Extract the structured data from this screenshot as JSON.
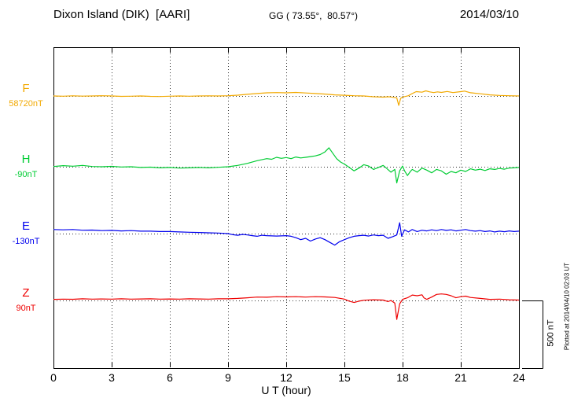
{
  "header": {
    "station": "Dixon Island (DIK)  [AARI]",
    "coords": "GG ( 73.55°,  80.57°)",
    "date": "2014/03/10"
  },
  "annotations": {
    "scale_label": "500 nT",
    "plotted_note": "Plotted at 2014/04/10 02:03 UT"
  },
  "chart_data": {
    "type": "line",
    "title": "Dixon Island (DIK) [AARI] magnetogram 2014/03/10",
    "xlabel": "U T (hour)",
    "x_range": [
      0,
      24
    ],
    "x_ticks": [
      0,
      3,
      6,
      9,
      12,
      15,
      18,
      21,
      24
    ],
    "scale_bar_nT": 500,
    "grid": "dotted vertical lines every 3 h; dotted horizontal baseline per channel",
    "legend_position": "left margin channel labels",
    "series": [
      {
        "name": "F",
        "baseline_label": "58720nT",
        "baseline_value": 58720,
        "units": "nT deviation from baseline",
        "color": "#f2a900",
        "points": [
          [
            0,
            0
          ],
          [
            0.5,
            -2
          ],
          [
            1,
            1
          ],
          [
            1.5,
            -1
          ],
          [
            2,
            0
          ],
          [
            2.5,
            2
          ],
          [
            3,
            0
          ],
          [
            3.5,
            -3
          ],
          [
            4,
            -2
          ],
          [
            4.5,
            0
          ],
          [
            5,
            -3
          ],
          [
            5.5,
            -4
          ],
          [
            6,
            -2
          ],
          [
            6.5,
            0
          ],
          [
            7,
            -2
          ],
          [
            7.5,
            0
          ],
          [
            8,
            1
          ],
          [
            8.5,
            0
          ],
          [
            9,
            2
          ],
          [
            9.5,
            6
          ],
          [
            10,
            12
          ],
          [
            10.5,
            18
          ],
          [
            11,
            23
          ],
          [
            11.5,
            25
          ],
          [
            12,
            23
          ],
          [
            12.5,
            26
          ],
          [
            13,
            22
          ],
          [
            13.5,
            18
          ],
          [
            14,
            14
          ],
          [
            14.5,
            8
          ],
          [
            15,
            5
          ],
          [
            15.5,
            2
          ],
          [
            16,
            0
          ],
          [
            16.5,
            -6
          ],
          [
            17,
            -9
          ],
          [
            17.3,
            -6
          ],
          [
            17.5,
            -10
          ],
          [
            17.7,
            -14
          ],
          [
            17.8,
            -70
          ],
          [
            17.9,
            -18
          ],
          [
            18,
            -8
          ],
          [
            18.3,
            2
          ],
          [
            18.5,
            18
          ],
          [
            18.7,
            32
          ],
          [
            19,
            28
          ],
          [
            19.2,
            38
          ],
          [
            19.4,
            30
          ],
          [
            19.6,
            25
          ],
          [
            19.8,
            30
          ],
          [
            20,
            26
          ],
          [
            20.3,
            33
          ],
          [
            20.6,
            25
          ],
          [
            21,
            32
          ],
          [
            21.2,
            36
          ],
          [
            21.5,
            24
          ],
          [
            22,
            16
          ],
          [
            22.5,
            8
          ],
          [
            23,
            4
          ],
          [
            23.5,
            2
          ],
          [
            24,
            0
          ]
        ]
      },
      {
        "name": "H",
        "baseline_label": "-90nT",
        "baseline_value": -90,
        "units": "nT deviation from baseline",
        "color": "#00cc33",
        "points": [
          [
            0,
            2
          ],
          [
            0.5,
            8
          ],
          [
            1,
            4
          ],
          [
            1.5,
            10
          ],
          [
            2,
            2
          ],
          [
            2.5,
            0
          ],
          [
            3,
            3
          ],
          [
            3.5,
            -2
          ],
          [
            4,
            0
          ],
          [
            4.5,
            -5
          ],
          [
            5,
            -3
          ],
          [
            5.5,
            -8
          ],
          [
            6,
            -5
          ],
          [
            6.5,
            -10
          ],
          [
            7,
            -8
          ],
          [
            7.5,
            -5
          ],
          [
            8,
            -8
          ],
          [
            8.5,
            -4
          ],
          [
            9,
            0
          ],
          [
            9.5,
            10
          ],
          [
            10,
            25
          ],
          [
            10.5,
            45
          ],
          [
            11,
            60
          ],
          [
            11.25,
            55
          ],
          [
            11.5,
            70
          ],
          [
            11.75,
            62
          ],
          [
            12,
            68
          ],
          [
            12.25,
            60
          ],
          [
            12.5,
            72
          ],
          [
            12.75,
            65
          ],
          [
            13,
            70
          ],
          [
            13.25,
            75
          ],
          [
            13.5,
            80
          ],
          [
            13.75,
            90
          ],
          [
            14,
            110
          ],
          [
            14.2,
            140
          ],
          [
            14.4,
            100
          ],
          [
            14.6,
            60
          ],
          [
            14.8,
            35
          ],
          [
            15,
            20
          ],
          [
            15.25,
            -5
          ],
          [
            15.5,
            -30
          ],
          [
            15.75,
            -10
          ],
          [
            16,
            15
          ],
          [
            16.25,
            5
          ],
          [
            16.5,
            -20
          ],
          [
            16.75,
            -5
          ],
          [
            17,
            10
          ],
          [
            17.2,
            -15
          ],
          [
            17.4,
            -40
          ],
          [
            17.6,
            -20
          ],
          [
            17.7,
            -120
          ],
          [
            17.85,
            -30
          ],
          [
            18,
            5
          ],
          [
            18.1,
            -30
          ],
          [
            18.25,
            -65
          ],
          [
            18.4,
            -35
          ],
          [
            18.5,
            -20
          ],
          [
            18.75,
            -40
          ],
          [
            19,
            -10
          ],
          [
            19.25,
            -25
          ],
          [
            19.5,
            -45
          ],
          [
            19.75,
            -20
          ],
          [
            20,
            -30
          ],
          [
            20.25,
            -55
          ],
          [
            20.5,
            -35
          ],
          [
            20.75,
            -45
          ],
          [
            21,
            -25
          ],
          [
            21.25,
            -35
          ],
          [
            21.5,
            -15
          ],
          [
            21.75,
            -25
          ],
          [
            22,
            -18
          ],
          [
            22.25,
            -28
          ],
          [
            22.5,
            -15
          ],
          [
            22.75,
            -20
          ],
          [
            23,
            -12
          ],
          [
            23.25,
            -18
          ],
          [
            23.5,
            -10
          ],
          [
            23.75,
            -8
          ],
          [
            24,
            -5
          ]
        ]
      },
      {
        "name": "E",
        "baseline_label": "-130nT",
        "baseline_value": -130,
        "units": "nT deviation from baseline",
        "color": "#0000ee",
        "points": [
          [
            0,
            30
          ],
          [
            0.5,
            28
          ],
          [
            1,
            30
          ],
          [
            1.5,
            25
          ],
          [
            2,
            26
          ],
          [
            2.5,
            22
          ],
          [
            3,
            24
          ],
          [
            3.5,
            20
          ],
          [
            4,
            22
          ],
          [
            4.5,
            18
          ],
          [
            5,
            18
          ],
          [
            5.5,
            15
          ],
          [
            6,
            15
          ],
          [
            6.5,
            12
          ],
          [
            7,
            10
          ],
          [
            7.5,
            8
          ],
          [
            8,
            6
          ],
          [
            8.5,
            4
          ],
          [
            9,
            0
          ],
          [
            9.25,
            -8
          ],
          [
            9.5,
            -12
          ],
          [
            9.75,
            -6
          ],
          [
            10,
            -10
          ],
          [
            10.25,
            -15
          ],
          [
            10.5,
            -20
          ],
          [
            10.75,
            -12
          ],
          [
            11,
            -15
          ],
          [
            11.5,
            -18
          ],
          [
            12,
            -15
          ],
          [
            12.25,
            -20
          ],
          [
            12.5,
            -30
          ],
          [
            12.75,
            -45
          ],
          [
            13,
            -35
          ],
          [
            13.25,
            -55
          ],
          [
            13.5,
            -40
          ],
          [
            13.75,
            -30
          ],
          [
            14,
            -45
          ],
          [
            14.25,
            -65
          ],
          [
            14.5,
            -85
          ],
          [
            14.75,
            -60
          ],
          [
            15,
            -45
          ],
          [
            15.25,
            -30
          ],
          [
            15.5,
            -20
          ],
          [
            15.75,
            -15
          ],
          [
            16,
            -12
          ],
          [
            16.25,
            -18
          ],
          [
            16.5,
            -10
          ],
          [
            16.75,
            -15
          ],
          [
            17,
            -12
          ],
          [
            17.25,
            -35
          ],
          [
            17.5,
            -22
          ],
          [
            17.7,
            -10
          ],
          [
            17.85,
            80
          ],
          [
            17.95,
            -20
          ],
          [
            18.1,
            28
          ],
          [
            18.3,
            12
          ],
          [
            18.5,
            30
          ],
          [
            18.75,
            15
          ],
          [
            19,
            25
          ],
          [
            19.25,
            20
          ],
          [
            19.5,
            28
          ],
          [
            19.75,
            22
          ],
          [
            20,
            30
          ],
          [
            20.25,
            24
          ],
          [
            20.5,
            28
          ],
          [
            20.75,
            20
          ],
          [
            21,
            25
          ],
          [
            21.25,
            30
          ],
          [
            21.5,
            22
          ],
          [
            21.75,
            18
          ],
          [
            22,
            22
          ],
          [
            22.25,
            15
          ],
          [
            22.5,
            20
          ],
          [
            22.75,
            12
          ],
          [
            23,
            18
          ],
          [
            23.25,
            14
          ],
          [
            23.5,
            20
          ],
          [
            23.75,
            15
          ],
          [
            24,
            18
          ]
        ]
      },
      {
        "name": "Z",
        "baseline_label": "90nT",
        "baseline_value": 90,
        "units": "nT deviation from baseline",
        "color": "#ee0000",
        "points": [
          [
            0,
            8
          ],
          [
            0.5,
            10
          ],
          [
            1,
            9
          ],
          [
            1.5,
            12
          ],
          [
            2,
            10
          ],
          [
            2.5,
            11
          ],
          [
            3,
            10
          ],
          [
            3.5,
            12
          ],
          [
            4,
            10
          ],
          [
            4.5,
            11
          ],
          [
            5,
            12
          ],
          [
            5.5,
            10
          ],
          [
            6,
            11
          ],
          [
            6.5,
            10
          ],
          [
            7,
            12
          ],
          [
            7.5,
            11
          ],
          [
            8,
            10
          ],
          [
            8.5,
            12
          ],
          [
            9,
            12
          ],
          [
            9.5,
            15
          ],
          [
            10,
            20
          ],
          [
            10.5,
            25
          ],
          [
            11,
            24
          ],
          [
            11.5,
            28
          ],
          [
            12,
            26
          ],
          [
            12.5,
            28
          ],
          [
            13,
            25
          ],
          [
            13.5,
            28
          ],
          [
            14,
            26
          ],
          [
            14.5,
            22
          ],
          [
            15,
            10
          ],
          [
            15.25,
            -5
          ],
          [
            15.5,
            -15
          ],
          [
            15.75,
            -5
          ],
          [
            16,
            2
          ],
          [
            16.5,
            5
          ],
          [
            17,
            3
          ],
          [
            17.25,
            -8
          ],
          [
            17.4,
            0
          ],
          [
            17.6,
            -20
          ],
          [
            17.7,
            -140
          ],
          [
            17.85,
            -25
          ],
          [
            18,
            8
          ],
          [
            18.25,
            20
          ],
          [
            18.5,
            40
          ],
          [
            18.75,
            35
          ],
          [
            19,
            42
          ],
          [
            19.1,
            20
          ],
          [
            19.25,
            8
          ],
          [
            19.5,
            25
          ],
          [
            19.75,
            45
          ],
          [
            20,
            48
          ],
          [
            20.25,
            45
          ],
          [
            20.5,
            35
          ],
          [
            20.75,
            20
          ],
          [
            21,
            28
          ],
          [
            21.25,
            32
          ],
          [
            21.5,
            22
          ],
          [
            22,
            15
          ],
          [
            22.5,
            8
          ],
          [
            23,
            10
          ],
          [
            23.5,
            5
          ],
          [
            24,
            3
          ]
        ]
      }
    ]
  }
}
